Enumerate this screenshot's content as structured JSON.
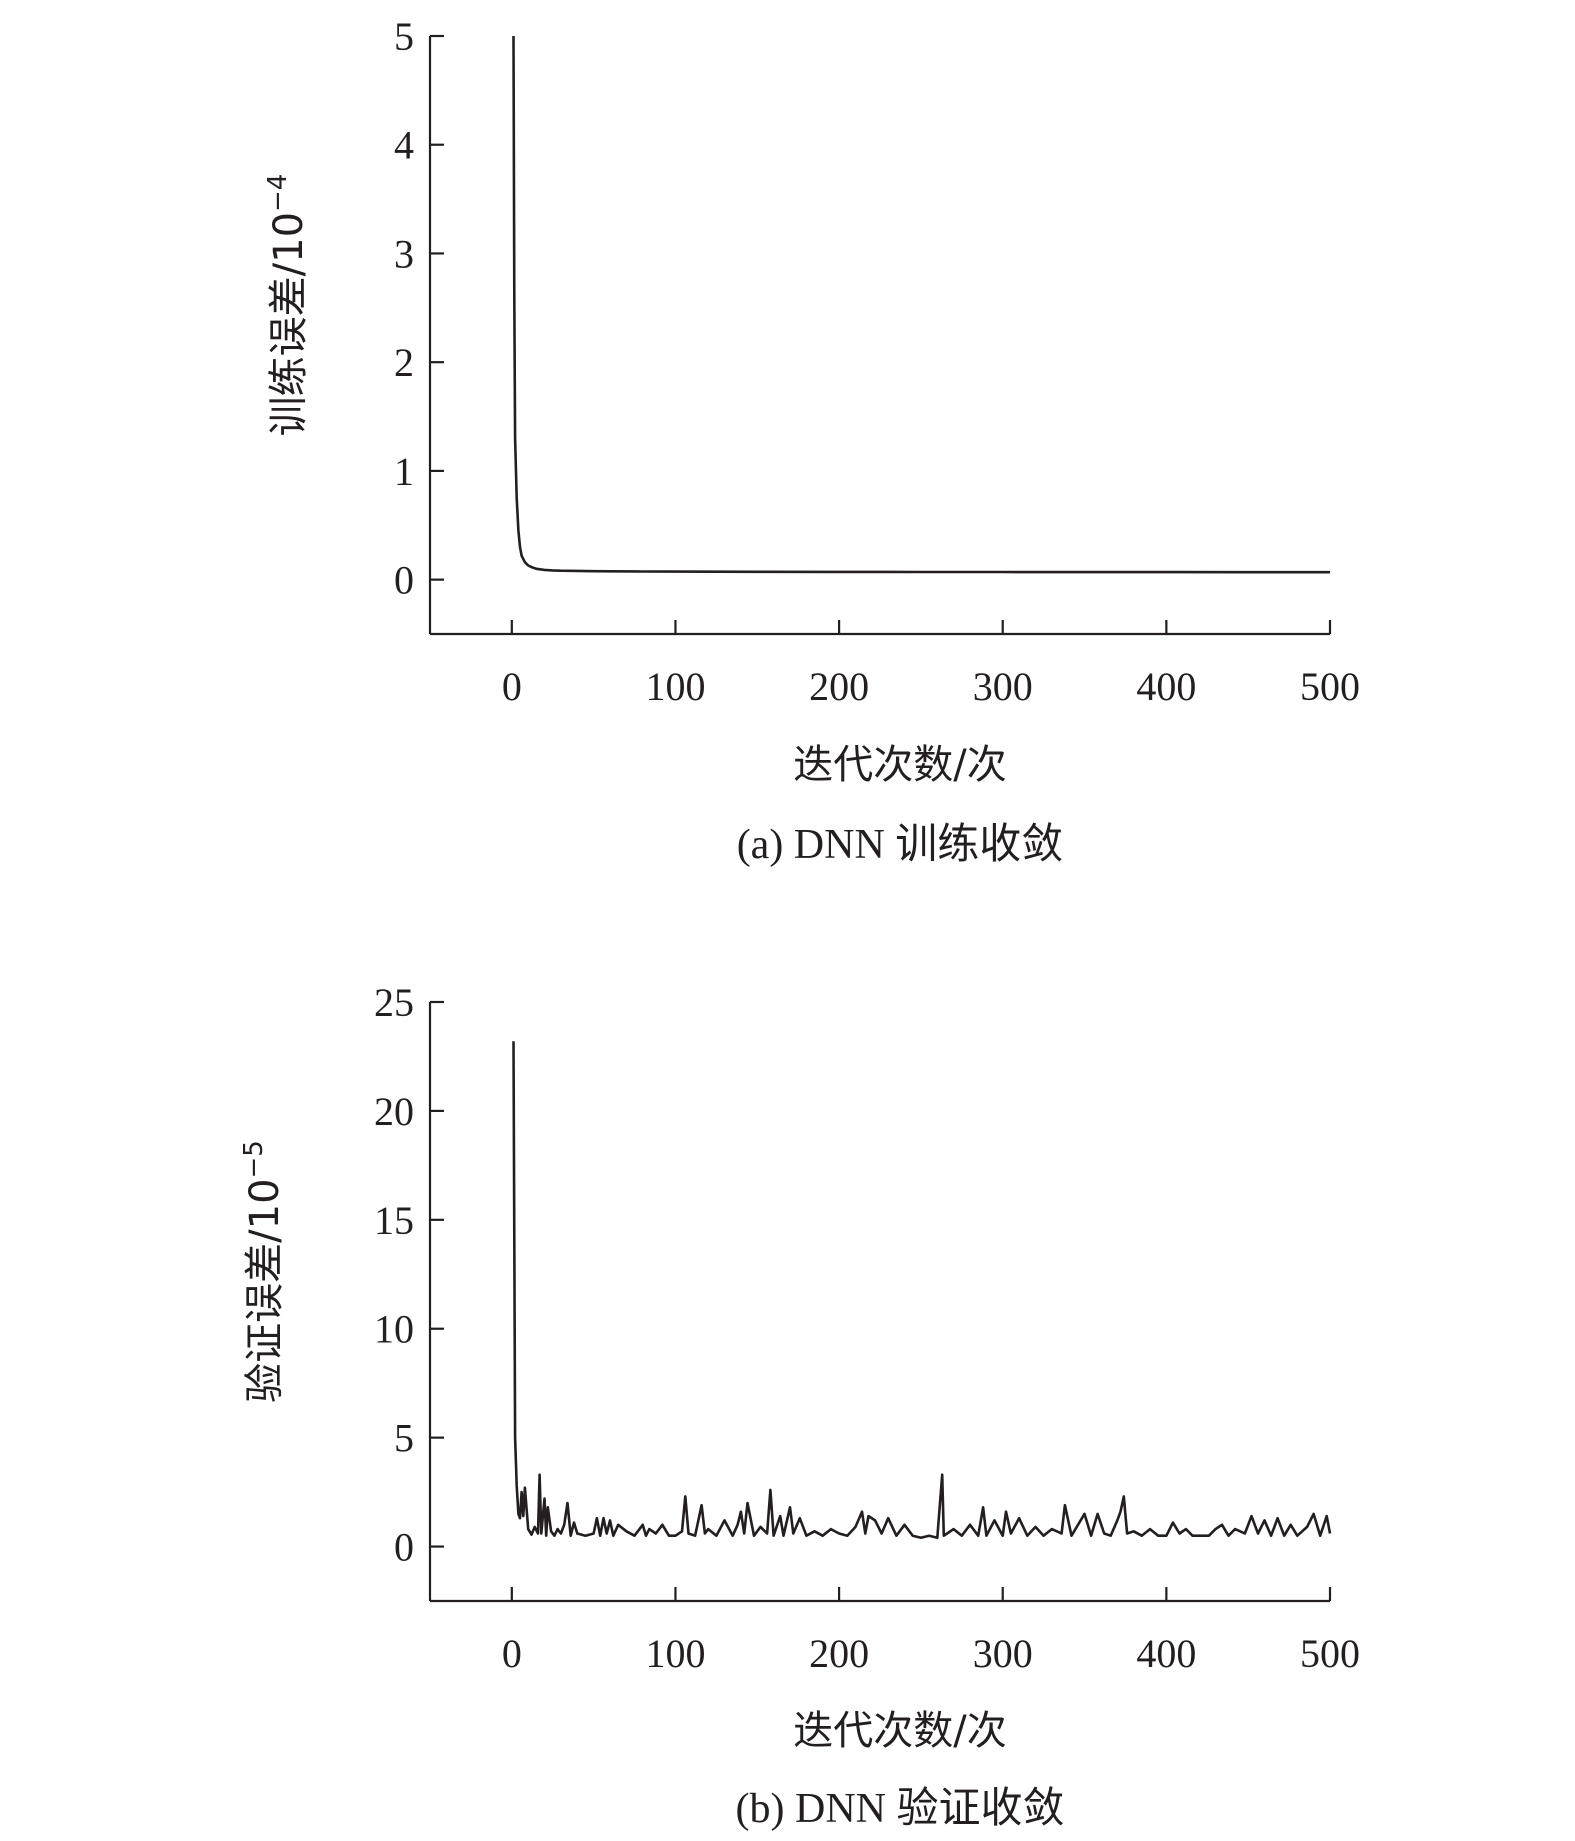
{
  "chart_data": [
    {
      "type": "line",
      "caption": "(a) DNN 训练收敛",
      "xlabel": "迭代次数/次",
      "ylabel_main": "训练误差/10",
      "ylabel_exp": "−4",
      "xlim": [
        -50,
        500
      ],
      "ylim": [
        -0.5,
        5
      ],
      "xticks": [
        0,
        100,
        200,
        300,
        400,
        500
      ],
      "xtick_labels": [
        "0",
        "100",
        "200",
        "300",
        "400",
        "500"
      ],
      "yticks": [
        0,
        1,
        2,
        3,
        4,
        5
      ],
      "ytick_labels": [
        "0",
        "1",
        "2",
        "3",
        "4",
        "5"
      ],
      "grid": false,
      "series": [
        {
          "x": [
            1,
            1.5,
            2,
            3,
            4,
            5,
            6,
            8,
            10,
            12,
            15,
            20,
            25,
            30,
            40,
            50,
            60,
            80,
            100,
            125,
            150,
            200,
            250,
            300,
            350,
            400,
            450,
            500
          ],
          "values": [
            5.0,
            2.6,
            1.3,
            0.75,
            0.45,
            0.3,
            0.22,
            0.16,
            0.13,
            0.115,
            0.1,
            0.09,
            0.085,
            0.082,
            0.08,
            0.078,
            0.077,
            0.075,
            0.074,
            0.073,
            0.072,
            0.071,
            0.07,
            0.07,
            0.069,
            0.069,
            0.068,
            0.068
          ]
        }
      ]
    },
    {
      "type": "line",
      "caption": "(b) DNN 验证收敛",
      "xlabel": "迭代次数/次",
      "ylabel_main": "验证误差/10",
      "ylabel_exp": "−5",
      "xlim": [
        -50,
        500
      ],
      "ylim": [
        -2.5,
        25
      ],
      "xticks": [
        0,
        100,
        200,
        300,
        400,
        500
      ],
      "xtick_labels": [
        "0",
        "100",
        "200",
        "300",
        "400",
        "500"
      ],
      "yticks": [
        0,
        5,
        10,
        15,
        20,
        25
      ],
      "ytick_labels": [
        "0",
        "5",
        "10",
        "15",
        "20",
        "25"
      ],
      "grid": false,
      "series": [
        {
          "x": [
            1,
            2,
            3,
            4,
            5,
            6,
            7,
            8,
            10,
            12,
            14,
            16,
            17,
            18,
            20,
            21,
            22,
            24,
            26,
            28,
            30,
            32,
            34,
            36,
            38,
            40,
            45,
            50,
            52,
            54,
            56,
            58,
            60,
            62,
            65,
            70,
            75,
            80,
            82,
            84,
            88,
            92,
            96,
            100,
            104,
            106,
            108,
            112,
            116,
            118,
            120,
            125,
            130,
            135,
            138,
            140,
            142,
            144,
            148,
            152,
            156,
            158,
            160,
            164,
            166,
            170,
            172,
            176,
            180,
            185,
            190,
            195,
            200,
            205,
            210,
            214,
            216,
            218,
            222,
            226,
            230,
            235,
            240,
            245,
            250,
            255,
            260,
            263,
            264,
            266,
            270,
            275,
            280,
            285,
            288,
            290,
            295,
            300,
            302,
            305,
            310,
            315,
            320,
            325,
            330,
            336,
            338,
            342,
            346,
            350,
            354,
            358,
            362,
            366,
            370,
            372,
            374,
            376,
            380,
            385,
            390,
            395,
            400,
            404,
            408,
            412,
            416,
            420,
            426,
            430,
            434,
            438,
            442,
            448,
            452,
            456,
            460,
            464,
            468,
            472,
            476,
            480,
            486,
            490,
            494,
            498,
            500
          ],
          "values": [
            23.2,
            5.0,
            2.8,
            1.5,
            1.3,
            2.5,
            1.4,
            2.7,
            0.8,
            0.55,
            0.9,
            0.6,
            3.3,
            0.6,
            2.2,
            0.5,
            1.8,
            0.7,
            0.5,
            0.8,
            0.6,
            1.0,
            2.0,
            0.5,
            1.1,
            0.6,
            0.5,
            0.6,
            1.3,
            0.5,
            1.3,
            0.6,
            1.2,
            0.5,
            1.0,
            0.7,
            0.5,
            1.0,
            0.5,
            0.8,
            0.6,
            1.0,
            0.5,
            0.5,
            0.7,
            2.3,
            0.6,
            0.5,
            1.9,
            0.6,
            0.8,
            0.5,
            1.2,
            0.5,
            1.0,
            1.6,
            0.6,
            2.0,
            0.5,
            0.9,
            0.6,
            2.6,
            0.5,
            1.4,
            0.5,
            1.8,
            0.6,
            1.3,
            0.5,
            0.7,
            0.5,
            0.8,
            0.6,
            0.5,
            0.9,
            1.6,
            0.6,
            1.4,
            1.2,
            0.6,
            1.3,
            0.5,
            1.0,
            0.5,
            0.4,
            0.5,
            0.4,
            3.3,
            0.5,
            0.6,
            0.8,
            0.5,
            1.0,
            0.5,
            1.8,
            0.5,
            1.2,
            0.5,
            1.6,
            0.6,
            1.3,
            0.5,
            0.9,
            0.5,
            0.8,
            0.6,
            1.9,
            0.5,
            1.0,
            1.5,
            0.5,
            1.5,
            0.6,
            0.5,
            1.2,
            1.6,
            2.3,
            0.6,
            0.7,
            0.5,
            0.8,
            0.5,
            0.5,
            1.1,
            0.6,
            0.8,
            0.5,
            0.5,
            0.5,
            0.8,
            1.0,
            0.5,
            0.8,
            0.6,
            1.4,
            0.6,
            1.2,
            0.5,
            1.3,
            0.5,
            1.0,
            0.5,
            0.9,
            1.5,
            0.5,
            1.4,
            0.6
          ]
        }
      ]
    }
  ]
}
